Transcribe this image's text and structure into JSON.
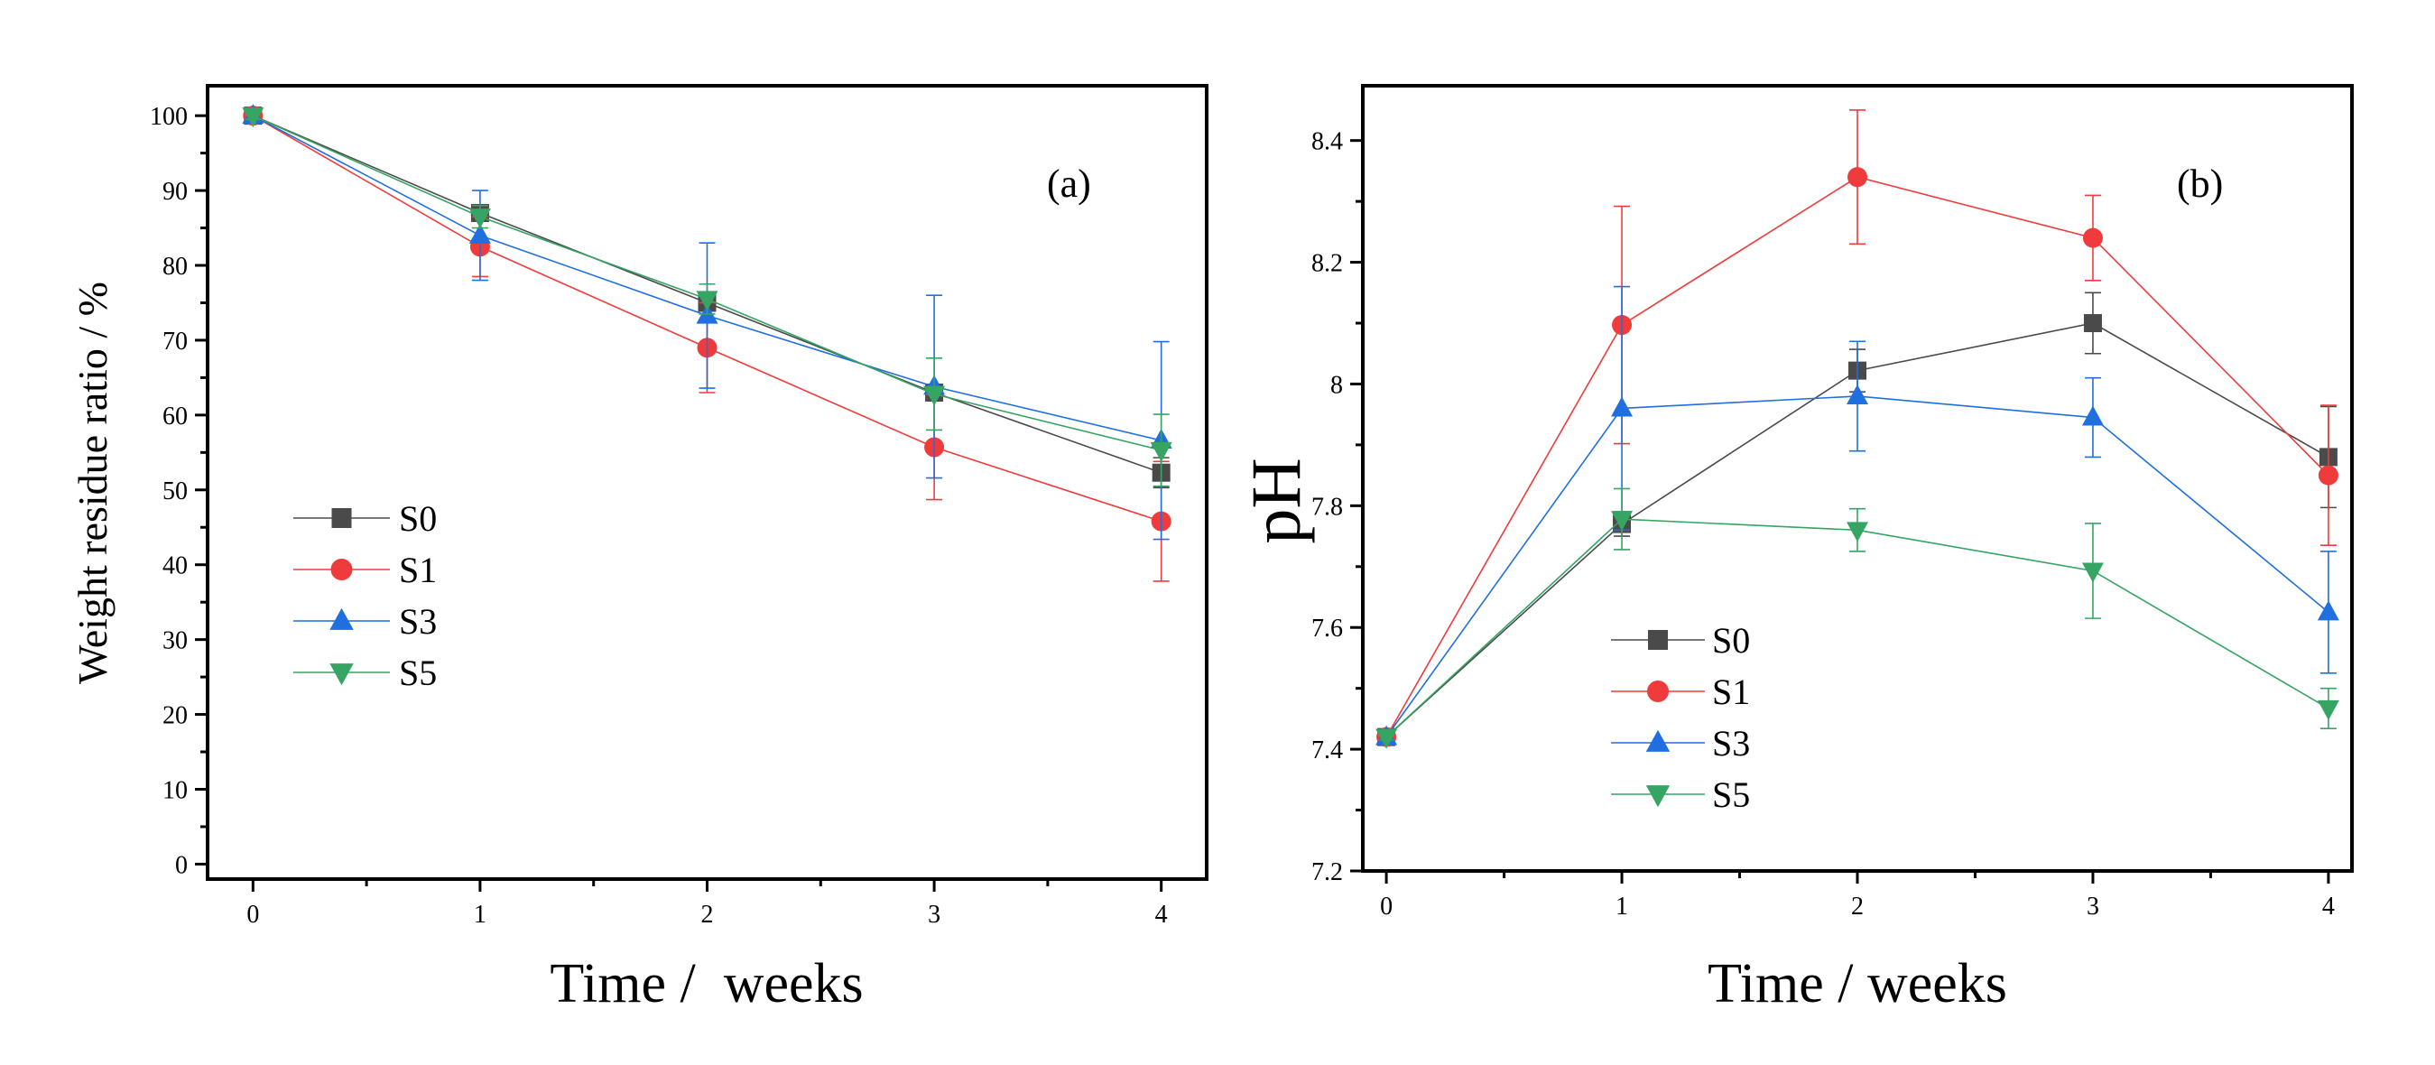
{
  "chart_data": [
    {
      "type": "line",
      "panel_label": "(a)",
      "xlabel": "Time /  weeks",
      "ylabel": "Weight residue ratio / %",
      "x": [
        0,
        1,
        2,
        3,
        4
      ],
      "xlim": [
        -0.2,
        4.2
      ],
      "ylim": [
        -2,
        104
      ],
      "xticks": [
        "0",
        "1",
        "2",
        "3",
        "4"
      ],
      "yticks": [
        "0",
        "10",
        "20",
        "30",
        "40",
        "50",
        "60",
        "70",
        "80",
        "90",
        "100"
      ],
      "ytick_values": [
        0,
        10,
        20,
        30,
        40,
        50,
        60,
        70,
        80,
        90,
        100
      ],
      "legend_position": "center-left",
      "grid": false,
      "series": [
        {
          "name": "S0",
          "color": "#4a4a4a",
          "marker": "square",
          "values": [
            100,
            87,
            75,
            63,
            52.3
          ],
          "error": [
            0.5,
            1,
            1,
            1,
            2
          ]
        },
        {
          "name": "S1",
          "color": "#ef3b3b",
          "marker": "circle",
          "values": [
            100,
            82.5,
            69,
            55.7,
            45.8
          ],
          "error": [
            0.5,
            4,
            6,
            7,
            8
          ]
        },
        {
          "name": "S3",
          "color": "#1f6fe0",
          "marker": "triangle-up",
          "values": [
            100,
            84,
            73.3,
            63.8,
            56.6
          ],
          "error": [
            0.5,
            6,
            9.7,
            12.2,
            13.2
          ]
        },
        {
          "name": "S5",
          "color": "#36a463",
          "marker": "triangle-down",
          "values": [
            100,
            86.5,
            75.5,
            62.8,
            55.3
          ],
          "error": [
            0.5,
            1.5,
            2,
            4.8,
            4.8
          ]
        }
      ]
    },
    {
      "type": "line",
      "panel_label": "(b)",
      "xlabel": "Time / weeks",
      "ylabel": "pH",
      "x": [
        0,
        1,
        2,
        3,
        4
      ],
      "xlim": [
        -0.1,
        4.1
      ],
      "ylim": [
        7.2,
        8.49
      ],
      "xticks": [
        "0",
        "1",
        "2",
        "3",
        "4"
      ],
      "yticks": [
        "7.2",
        "7.4",
        "7.6",
        "7.8",
        "8",
        "8.2",
        "8.4"
      ],
      "ytick_values": [
        7.2,
        7.4,
        7.6,
        7.8,
        8.0,
        8.2,
        8.4
      ],
      "legend_position": "bottom-center",
      "grid": false,
      "series": [
        {
          "name": "S0",
          "color": "#4a4a4a",
          "marker": "square",
          "values": [
            7.42,
            7.77,
            8.022,
            8.1,
            7.88
          ],
          "error": [
            0.005,
            0.02,
            0.035,
            0.05,
            0.083
          ]
        },
        {
          "name": "S1",
          "color": "#ef3b3b",
          "marker": "circle",
          "values": [
            7.42,
            8.097,
            8.34,
            8.24,
            7.85
          ],
          "error": [
            0.005,
            0.195,
            0.11,
            0.07,
            0.115
          ]
        },
        {
          "name": "S3",
          "color": "#1f6fe0",
          "marker": "triangle-up",
          "values": [
            7.42,
            7.96,
            7.98,
            7.945,
            7.625
          ],
          "error": [
            0.005,
            0.2,
            0.09,
            0.065,
            0.1
          ]
        },
        {
          "name": "S5",
          "color": "#36a463",
          "marker": "triangle-down",
          "values": [
            7.42,
            7.778,
            7.76,
            7.693,
            7.467
          ],
          "error": [
            0.005,
            0.05,
            0.035,
            0.078,
            0.033
          ]
        }
      ]
    }
  ]
}
